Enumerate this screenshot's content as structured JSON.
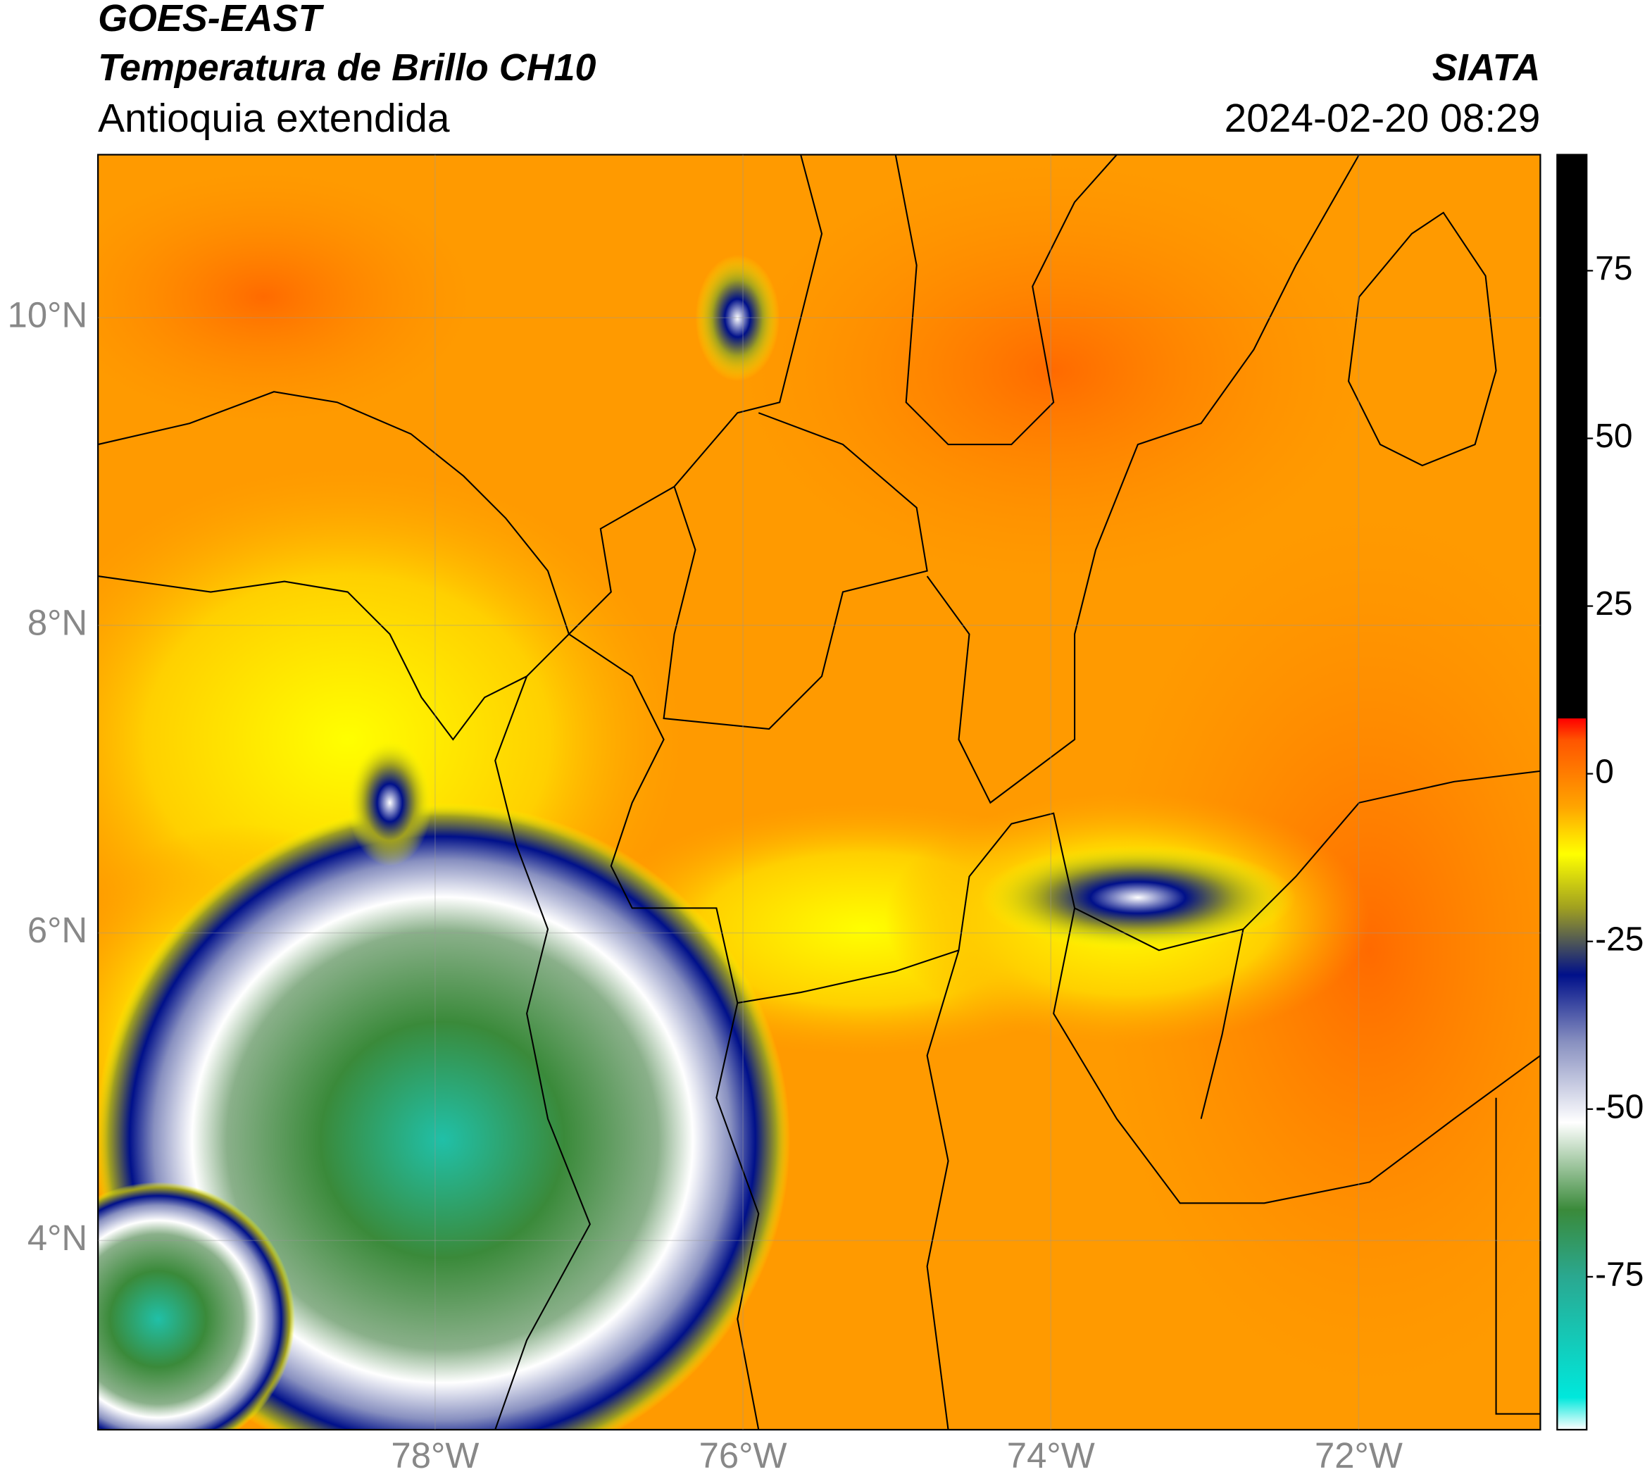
{
  "header": {
    "satellite": "GOES-EAST",
    "product": "Temperatura de Brillo CH10",
    "region": "Antioquia extendida",
    "source": "SIATA",
    "datetime": "2024-02-20 08:29"
  },
  "map": {
    "lon_range": [
      -80.19,
      -70.82
    ],
    "lat_range": [
      2.77,
      11.06
    ],
    "lon_ticks": [
      {
        "value": -78,
        "label": "78°W"
      },
      {
        "value": -76,
        "label": "76°W"
      },
      {
        "value": -74,
        "label": "74°W"
      },
      {
        "value": -72,
        "label": "72°W"
      }
    ],
    "lat_ticks": [
      {
        "value": 10,
        "label": "10°N"
      },
      {
        "value": 8,
        "label": "8°N"
      },
      {
        "value": 6,
        "label": "6°N"
      },
      {
        "value": 4,
        "label": "4°N"
      }
    ],
    "grid": true
  },
  "colorbar": {
    "range": [
      -97.8,
      92.3
    ],
    "ticks": [
      75,
      50,
      25,
      0,
      -25,
      -50,
      -75
    ],
    "stops": [
      {
        "value": -97.8,
        "color": "#ffffff"
      },
      {
        "value": -93,
        "color": "#00e8dc"
      },
      {
        "value": -75,
        "color": "#2aa890"
      },
      {
        "value": -65,
        "color": "#3a8a3a"
      },
      {
        "value": -52,
        "color": "#ffffff"
      },
      {
        "value": -40,
        "color": "#8890c0"
      },
      {
        "value": -30,
        "color": "#00108a"
      },
      {
        "value": -20,
        "color": "#a0a020"
      },
      {
        "value": -12,
        "color": "#ffff00"
      },
      {
        "value": -5,
        "color": "#ffa500"
      },
      {
        "value": 5,
        "color": "#ff5500"
      },
      {
        "value": 8.2,
        "color": "#ff0000"
      },
      {
        "value": 8.3,
        "color": "#000000"
      },
      {
        "value": 92.3,
        "color": "#000000"
      }
    ]
  }
}
